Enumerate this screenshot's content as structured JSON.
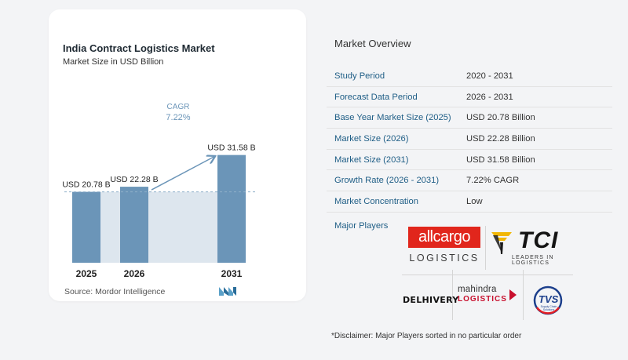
{
  "chart_data": {
    "type": "bar",
    "title": "India Contract Logistics Market",
    "subtitle": "Market Size in USD Billion",
    "categories": [
      "2025",
      "2026",
      "2031"
    ],
    "values": [
      20.78,
      22.28,
      31.58
    ],
    "value_labels": [
      "USD 20.78 B",
      "USD 22.28 B",
      "USD 31.58 B"
    ],
    "cagr_label": "CAGR",
    "cagr_value": "7.22%",
    "bar_color": "#6b95b8",
    "shade_color": "#dde6ee"
  },
  "source": "Source:  Mordor Intelligence",
  "overview": {
    "title": "Market Overview",
    "rows": [
      {
        "label": "Study Period",
        "value": "2020 - 2031"
      },
      {
        "label": "Forecast Data Period",
        "value": "2026 - 2031"
      },
      {
        "label": "Base Year Market Size (2025)",
        "value": "USD 20.78 Billion"
      },
      {
        "label": "Market Size (2026)",
        "value": "USD 22.28 Billion"
      },
      {
        "label": "Market Size (2031)",
        "value": "USD 31.58 Billion"
      },
      {
        "label": "Growth Rate (2026 - 2031)",
        "value": "7.22% CAGR"
      },
      {
        "label": "Market Concentration",
        "value": "Low"
      }
    ]
  },
  "players": {
    "label": "Major Players",
    "allcargo_top": "allcargo",
    "allcargo_bottom": "LOGISTICS",
    "tci_name": "TCI",
    "tci_tagline": "LEADERS IN LOGISTICS",
    "delhivery": "DELHIVERY",
    "mahindra_top": "mahindra",
    "mahindra_bottom": "LOGISTICS",
    "tvs_name": "TVS",
    "tvs_sub": "Supply Chain Solutions"
  },
  "disclaimer": "*Disclaimer: Major Players sorted in no particular order"
}
